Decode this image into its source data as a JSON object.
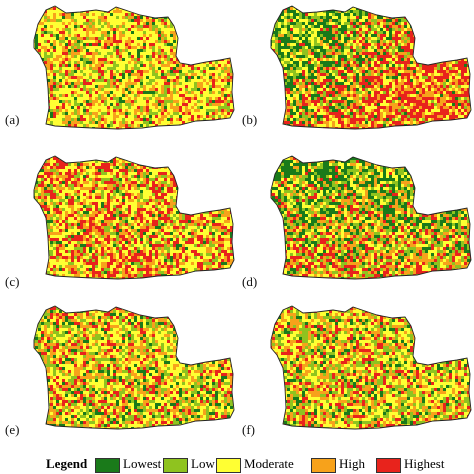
{
  "panels": [
    {
      "label": "(a)",
      "scheme": "a"
    },
    {
      "label": "(b)",
      "scheme": "b"
    },
    {
      "label": "(c)",
      "scheme": "c"
    },
    {
      "label": "(d)",
      "scheme": "d"
    },
    {
      "label": "(e)",
      "scheme": "e"
    },
    {
      "label": "(f)",
      "scheme": "f"
    }
  ],
  "legend": {
    "title": "Legend",
    "classes": [
      {
        "label": "Lowest",
        "color": "#1a7a1a"
      },
      {
        "label": "Low",
        "color": "#8fc31f"
      },
      {
        "label": "Moderate",
        "color": "#ffff33"
      },
      {
        "label": "High",
        "color": "#f7a21b"
      },
      {
        "label": "Highest",
        "color": "#e8231c"
      }
    ]
  }
}
